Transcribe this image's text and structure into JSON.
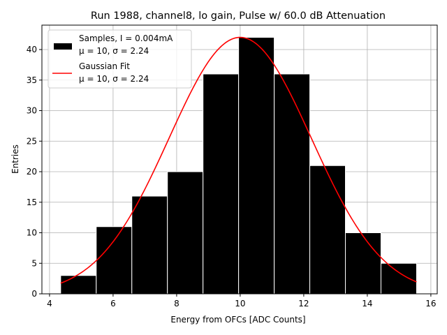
{
  "chart_data": {
    "type": "bar",
    "title": "Run 1988, channel8, lo gain, Pulse w/ 60.0 dB Attenuation",
    "xlabel": "Energy from OFCs [ADC Counts]",
    "ylabel": "Entries",
    "xlim": [
      3.76,
      16.2
    ],
    "ylim": [
      0,
      44
    ],
    "xticks": [
      4,
      6,
      8,
      10,
      12,
      14,
      16
    ],
    "yticks": [
      0,
      5,
      10,
      15,
      20,
      25,
      30,
      35,
      40
    ],
    "grid": true,
    "legend_position": "top-left",
    "histogram": {
      "name": "Samples, I = 0.004mA",
      "stats": "μ = 10, σ = 2.24",
      "color": "#000000",
      "edgecolor": "#ffffff",
      "bin_edges": [
        4.35,
        5.47,
        6.59,
        7.71,
        8.83,
        9.95,
        11.07,
        12.19,
        13.31,
        14.43,
        15.55
      ],
      "counts": [
        3,
        11,
        16,
        20,
        36,
        42,
        36,
        21,
        10,
        5
      ]
    },
    "fit": {
      "name": "Gaussian Fit",
      "stats": "μ = 10, σ = 2.24",
      "color": "#ff0000",
      "mu": 10,
      "sigma": 2.24,
      "amplitude": 42,
      "x_range": [
        4.35,
        15.55
      ]
    }
  }
}
